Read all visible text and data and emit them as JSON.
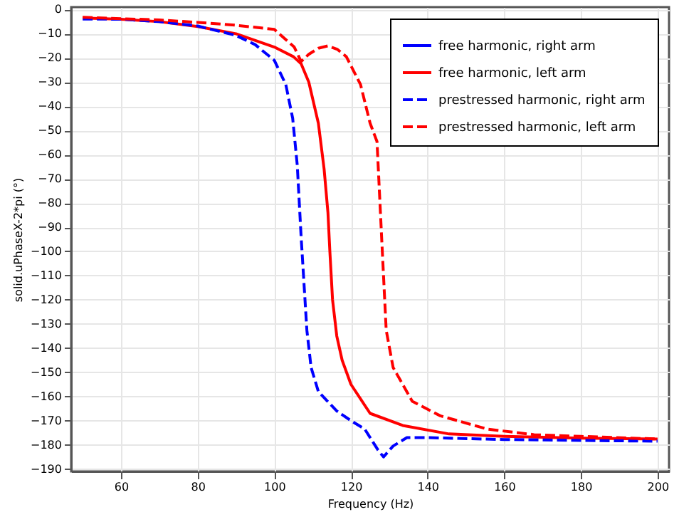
{
  "chart_data": {
    "type": "line",
    "xlabel": "Frequency (Hz)",
    "ylabel": "solid.uPhaseX-2*pi (°)",
    "xlim": [
      47,
      203
    ],
    "ylim": [
      -191,
      1
    ],
    "xticks": [
      60,
      80,
      100,
      120,
      140,
      160,
      180,
      200
    ],
    "yticks": [
      0,
      -10,
      -20,
      -30,
      -40,
      -50,
      -60,
      -70,
      -80,
      -90,
      -100,
      -110,
      -120,
      -130,
      -140,
      -150,
      -160,
      -170,
      -180,
      -190
    ],
    "grid": true,
    "legend": "top right",
    "marker": "none",
    "series": [
      {
        "name": "free harmonic, right arm",
        "color": "#0000ff",
        "line_style": "solid"
      },
      {
        "name": "free harmonic, left arm",
        "color": "#ff0000",
        "line_style": "solid",
        "x": [
          50,
          60,
          70,
          80,
          90,
          100,
          105,
          107,
          109,
          111.5,
          113,
          114,
          114.5,
          115.2,
          116.3,
          117.7,
          120,
          125,
          133.5,
          145.6,
          160,
          180,
          200
        ],
        "values": [
          -3.5,
          -4,
          -5,
          -7,
          -10,
          -15.5,
          -19.5,
          -22.4,
          -30,
          -47,
          -66,
          -84,
          -100,
          -120,
          -135,
          -145,
          -155,
          -167,
          -172,
          -175.5,
          -176.5,
          -177.2,
          -177.6
        ]
      },
      {
        "name": "prestressed harmonic, right arm",
        "color": "#0000ff",
        "line_style": "dashed",
        "x": [
          50,
          60,
          70,
          80,
          90,
          95,
          100,
          103,
          104.8,
          106,
          107,
          108.5,
          109.6,
          111.5,
          116.3,
          120,
          123.6,
          127,
          128.5,
          131,
          134.6,
          139.8,
          160,
          180,
          200
        ],
        "values": [
          -3.9,
          -4,
          -5,
          -6.8,
          -10.7,
          -14.5,
          -21,
          -31,
          -45,
          -64.5,
          -94,
          -132.6,
          -148,
          -158,
          -166,
          -170,
          -173.5,
          -182,
          -185,
          -180.5,
          -177,
          -177,
          -177.8,
          -178.2,
          -178.5
        ]
      },
      {
        "name": "prestressed harmonic, left arm",
        "color": "#ff0000",
        "line_style": "dashed",
        "x": [
          50,
          60,
          70,
          80,
          90,
          100,
          105.2,
          107,
          109,
          111.5,
          114,
          116.5,
          118.8,
          122.5,
          125,
          126.8,
          128,
          129.2,
          131,
          136,
          143.3,
          155.6,
          167.8,
          180,
          200
        ],
        "values": [
          -3.2,
          -3.8,
          -4.3,
          -5.3,
          -6.5,
          -8.2,
          -15.5,
          -21.5,
          -18.5,
          -16,
          -15,
          -16.5,
          -19.5,
          -31,
          -47,
          -54.6,
          -94,
          -132.6,
          -148,
          -162,
          -168,
          -173.5,
          -175.8,
          -176.5,
          -177.6
        ]
      }
    ]
  }
}
